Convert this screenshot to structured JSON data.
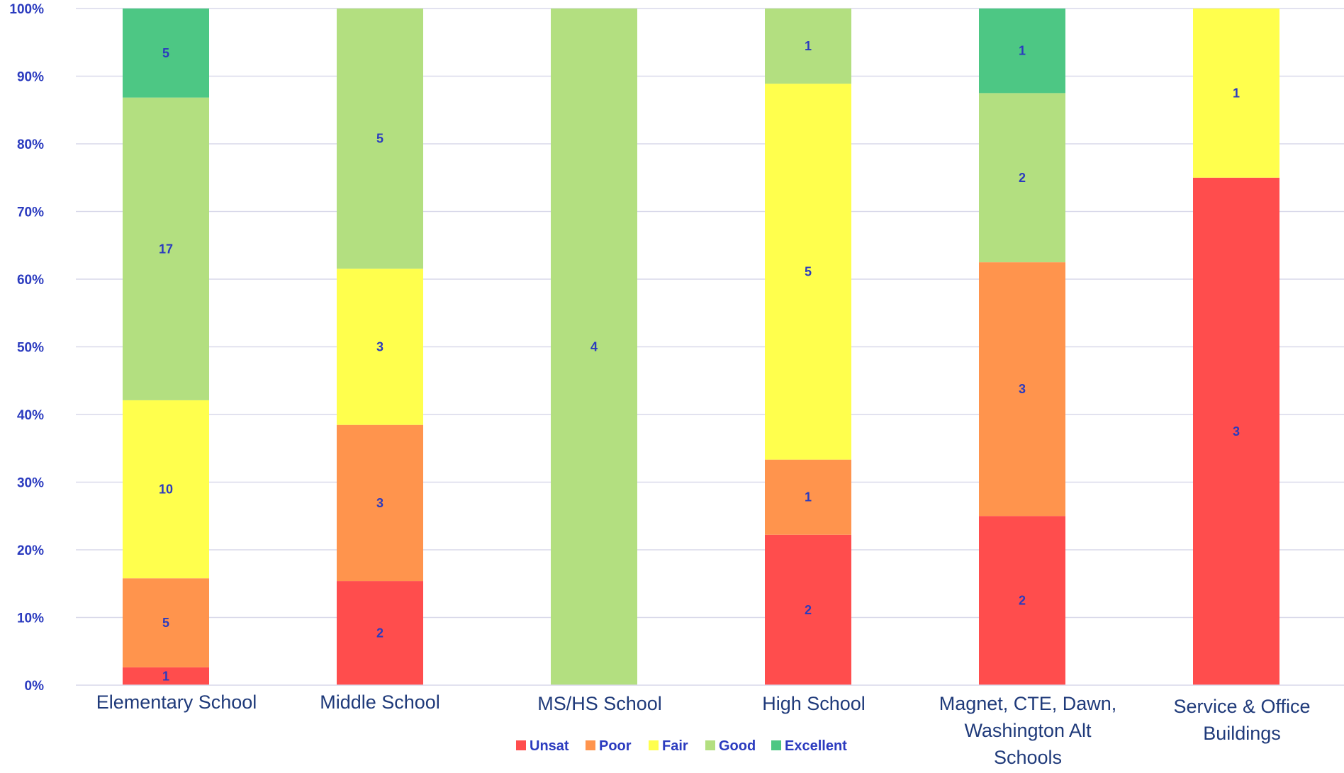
{
  "chart_data": {
    "type": "bar",
    "stacked": true,
    "percent_stacked": true,
    "categories": [
      "Elementary School",
      "Middle School",
      "MS/HS School",
      "High School",
      "Magnet, CTE, Dawn, Washington Alt Schools",
      "Service & Office Buildings"
    ],
    "category_lines": [
      [
        "Elementary School"
      ],
      [
        "Middle School"
      ],
      [
        "MS/HS School"
      ],
      [
        "High School"
      ],
      [
        "Magnet, CTE, Dawn,",
        "Washington Alt",
        "Schools"
      ],
      [
        "Service & Office",
        "Buildings"
      ]
    ],
    "series": [
      {
        "name": "Unsat",
        "color": "#ff4d4d",
        "values": [
          1,
          2,
          0,
          2,
          2,
          3
        ]
      },
      {
        "name": "Poor",
        "color": "#ff944d",
        "values": [
          5,
          3,
          0,
          1,
          3,
          0
        ]
      },
      {
        "name": "Fair",
        "color": "#ffff4d",
        "values": [
          10,
          3,
          0,
          5,
          0,
          1
        ]
      },
      {
        "name": "Good",
        "color": "#b3df80",
        "values": [
          17,
          5,
          4,
          1,
          2,
          0
        ]
      },
      {
        "name": "Excellent",
        "color": "#4dc784",
        "values": [
          5,
          0,
          0,
          0,
          1,
          0
        ]
      }
    ],
    "y_ticks": [
      "0%",
      "10%",
      "20%",
      "30%",
      "40%",
      "50%",
      "60%",
      "70%",
      "80%",
      "90%",
      "100%"
    ],
    "ylim": [
      0,
      100
    ],
    "grid": true,
    "legend_position": "bottom",
    "label_color": "#2b3bbf",
    "tick_color": "#2b3bbf",
    "category_color": "#1f3a7a",
    "title": "",
    "xlabel": "",
    "ylabel": ""
  }
}
